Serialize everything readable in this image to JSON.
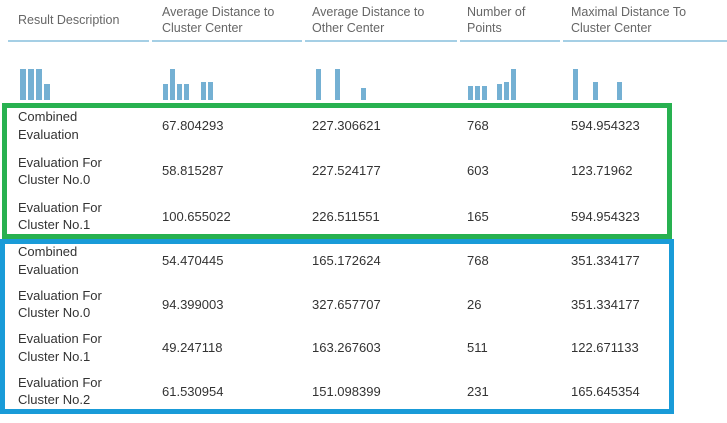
{
  "colors": {
    "bar_blue": "#74b0d3",
    "divider_blue": "#a5cfe5",
    "group_outline_green": "#28b150",
    "group_outline_blue": "#199bd8",
    "header_text": "#666666",
    "cell_text": "#333333"
  },
  "columns": [
    {
      "id": "result-description",
      "label": "Result Description",
      "histogram_bars": [
        {
          "h": 1
        },
        {
          "h": 1
        },
        {
          "h": 1
        },
        {
          "h": 0.5
        }
      ]
    },
    {
      "id": "avg-distance-to-cluster-center",
      "label": "Average Distance to Cluster Center",
      "histogram_bars": [
        {
          "h": 0.5
        },
        {
          "h": 1
        },
        {
          "h": 0.5
        },
        {
          "h": 0.5
        },
        {
          "h": 0.58,
          "gap": 10
        },
        {
          "h": 0.58
        }
      ]
    },
    {
      "id": "avg-distance-to-other-center",
      "label": "Average Distance to Other Center",
      "histogram_bars": [
        {
          "h": 1
        },
        {
          "h": 1,
          "gap": 12
        },
        {
          "h": 0.38,
          "gap": 19
        }
      ]
    },
    {
      "id": "number-of-points",
      "label": "Number of Points",
      "histogram_bars": [
        {
          "h": 0.45
        },
        {
          "h": 0.45
        },
        {
          "h": 0.45
        },
        {
          "h": 0.5,
          "gap": 8
        },
        {
          "h": 0.58
        },
        {
          "h": 1
        }
      ]
    },
    {
      "id": "max-distance-to-cluster-center",
      "label": "Maximal Distance To Cluster Center",
      "histogram_bars": [
        {
          "h": 1
        },
        {
          "h": 0.58,
          "gap": 13
        },
        {
          "h": 0.58,
          "gap": 17
        }
      ]
    }
  ],
  "groups": [
    {
      "name": "first-model-evaluation",
      "outline": "green",
      "rows": [
        {
          "label": "Combined Evaluation",
          "values": [
            "67.804293",
            "227.306621",
            "768",
            "594.954323"
          ]
        },
        {
          "label": "Evaluation For Cluster No.0",
          "values": [
            "58.815287",
            "227.524177",
            "603",
            "123.71962"
          ]
        },
        {
          "label": "Evaluation For Cluster No.1",
          "values": [
            "100.655022",
            "226.511551",
            "165",
            "594.954323"
          ]
        }
      ]
    },
    {
      "name": "second-model-evaluation",
      "outline": "blue",
      "rows": [
        {
          "label": "Combined Evaluation",
          "values": [
            "54.470445",
            "165.172624",
            "768",
            "351.334177"
          ]
        },
        {
          "label": "Evaluation For Cluster No.0",
          "values": [
            "94.399003",
            "327.657707",
            "26",
            "351.334177"
          ]
        },
        {
          "label": "Evaluation For Cluster No.1",
          "values": [
            "49.247118",
            "163.267603",
            "511",
            "122.671133"
          ]
        },
        {
          "label": "Evaluation For Cluster No.2",
          "values": [
            "61.530954",
            "151.098399",
            "231",
            "165.645354"
          ]
        }
      ]
    }
  ]
}
